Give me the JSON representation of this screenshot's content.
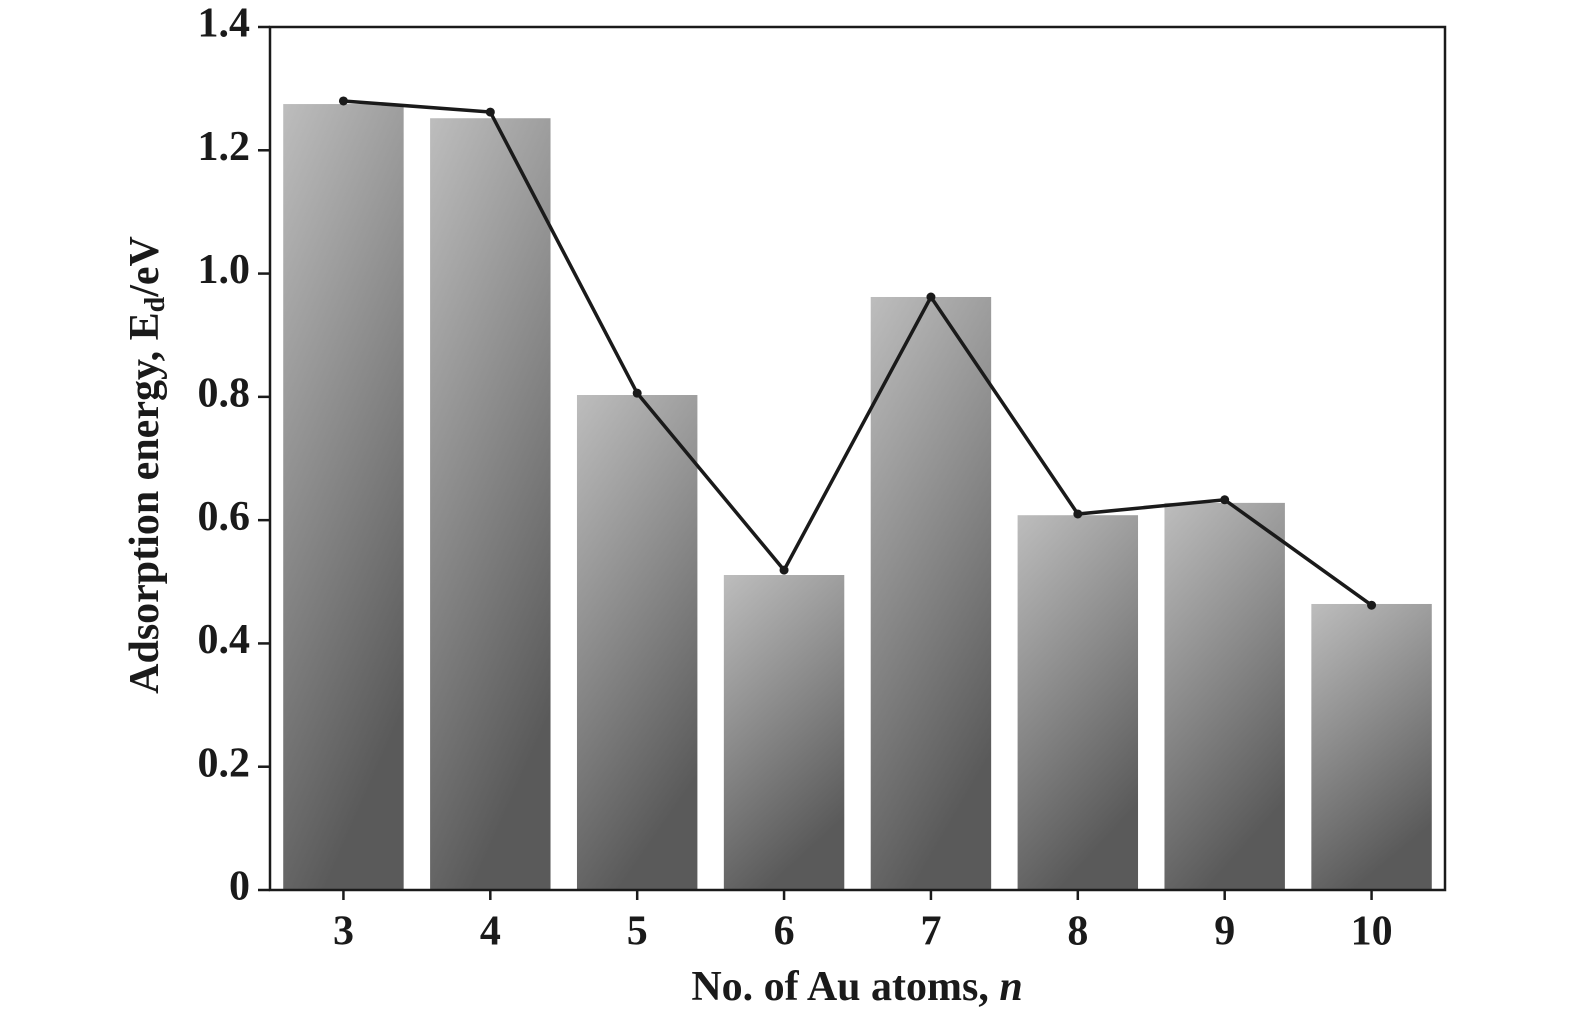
{
  "chart_data": {
    "type": "bar",
    "x_label": [
      "No. of Au atoms, ",
      "n"
    ],
    "y_label": [
      "Adsorption energy, E",
      "d",
      "/eV"
    ],
    "categories": [
      "3",
      "4",
      "5",
      "6",
      "7",
      "8",
      "9",
      "10"
    ],
    "series": [
      {
        "type": "bar",
        "color": "#bdbdbd",
        "values": [
          1.275,
          1.252,
          0.803,
          0.511,
          0.962,
          0.608,
          0.628,
          0.464
        ]
      },
      {
        "type": "line",
        "color": "#1a1a1a",
        "values": [
          1.28,
          1.262,
          0.806,
          0.519,
          0.962,
          0.61,
          0.633,
          0.462
        ]
      }
    ],
    "ylim": [
      0,
      1.4
    ],
    "yticks": [
      0,
      0.2,
      0.4,
      0.6,
      0.8,
      {
        "value": 1,
        "label": "1.0"
      },
      1.2,
      1.4
    ],
    "grid": false
  }
}
